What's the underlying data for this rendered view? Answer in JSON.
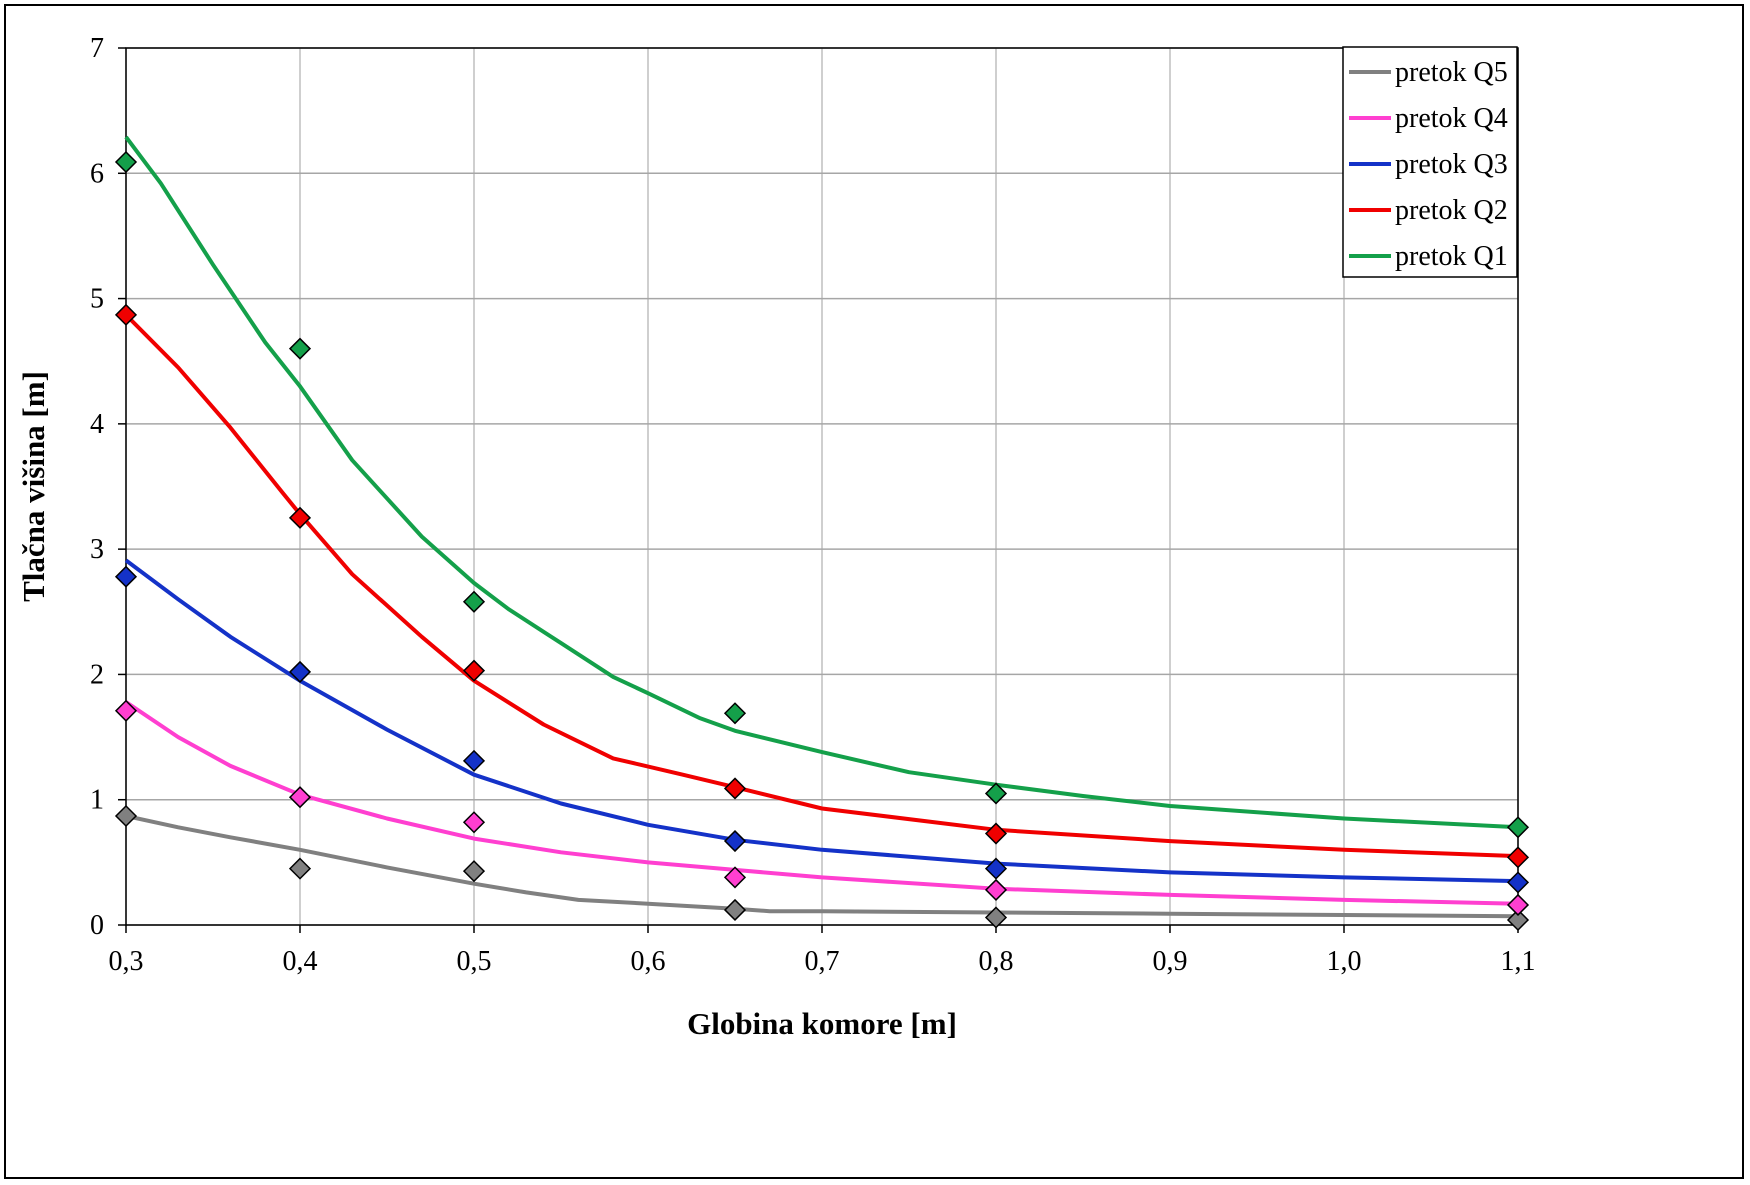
{
  "chart_data": {
    "type": "line",
    "title": "",
    "xlabel": "Globina komore [m]",
    "ylabel": "Tlačna višina [m]",
    "xlim": [
      0.3,
      1.1
    ],
    "ylim": [
      0,
      7
    ],
    "x_ticks": [
      "0,3",
      "0,4",
      "0,5",
      "0,6",
      "0,7",
      "0,8",
      "0,9",
      "1,0",
      "1,1"
    ],
    "y_ticks": [
      "0",
      "1",
      "2",
      "3",
      "4",
      "5",
      "6",
      "7"
    ],
    "grid": true,
    "legend_position": "top-right",
    "series": [
      {
        "name": "pretok Q5",
        "color": "#808080",
        "points_x": [
          0.3,
          0.4,
          0.5,
          0.65,
          0.8,
          1.1
        ],
        "points_y": [
          0.87,
          0.45,
          0.43,
          0.12,
          0.06,
          0.04
        ],
        "curve_x": [
          0.3,
          0.33,
          0.36,
          0.4,
          0.45,
          0.5,
          0.53,
          0.56,
          0.6,
          0.65,
          0.67,
          0.7,
          0.8,
          0.9,
          1.0,
          1.1
        ],
        "curve_y": [
          0.87,
          0.78,
          0.7,
          0.6,
          0.46,
          0.33,
          0.26,
          0.2,
          0.17,
          0.13,
          0.11,
          0.11,
          0.1,
          0.09,
          0.08,
          0.07
        ]
      },
      {
        "name": "pretok Q4",
        "color": "#FF3FD0",
        "points_x": [
          0.3,
          0.4,
          0.5,
          0.65,
          0.8,
          1.1
        ],
        "points_y": [
          1.71,
          1.02,
          0.82,
          0.38,
          0.28,
          0.16
        ],
        "curve_x": [
          0.3,
          0.33,
          0.36,
          0.4,
          0.45,
          0.5,
          0.55,
          0.6,
          0.65,
          0.7,
          0.8,
          0.9,
          1.0,
          1.1
        ],
        "curve_y": [
          1.78,
          1.5,
          1.27,
          1.04,
          0.85,
          0.69,
          0.58,
          0.5,
          0.44,
          0.38,
          0.29,
          0.24,
          0.2,
          0.17
        ]
      },
      {
        "name": "pretok Q3",
        "color": "#1432C8",
        "points_x": [
          0.3,
          0.4,
          0.5,
          0.65,
          0.8,
          1.1
        ],
        "points_y": [
          2.78,
          2.02,
          1.31,
          0.67,
          0.45,
          0.34
        ],
        "curve_x": [
          0.3,
          0.33,
          0.36,
          0.4,
          0.45,
          0.5,
          0.55,
          0.6,
          0.65,
          0.7,
          0.8,
          0.9,
          1.0,
          1.1
        ],
        "curve_y": [
          2.91,
          2.6,
          2.3,
          1.95,
          1.56,
          1.2,
          0.97,
          0.8,
          0.68,
          0.6,
          0.49,
          0.42,
          0.38,
          0.35
        ]
      },
      {
        "name": "pretok Q2",
        "color": "#F00000",
        "points_x": [
          0.3,
          0.4,
          0.5,
          0.65,
          0.8,
          1.1
        ],
        "points_y": [
          4.87,
          3.25,
          2.03,
          1.09,
          0.73,
          0.54
        ],
        "curve_x": [
          0.3,
          0.33,
          0.36,
          0.39,
          0.4,
          0.43,
          0.47,
          0.5,
          0.54,
          0.58,
          0.62,
          0.65,
          0.7,
          0.8,
          0.9,
          1.0,
          1.1
        ],
        "curve_y": [
          4.87,
          4.45,
          3.97,
          3.45,
          3.28,
          2.8,
          2.3,
          1.95,
          1.6,
          1.33,
          1.2,
          1.1,
          0.93,
          0.76,
          0.67,
          0.6,
          0.55
        ]
      },
      {
        "name": "pretok Q1",
        "color": "#14A04A",
        "points_x": [
          0.3,
          0.4,
          0.5,
          0.65,
          0.8,
          1.1
        ],
        "points_y": [
          6.09,
          4.6,
          2.58,
          1.69,
          1.05,
          0.78
        ],
        "curve_x": [
          0.3,
          0.32,
          0.35,
          0.38,
          0.4,
          0.43,
          0.47,
          0.5,
          0.52,
          0.55,
          0.58,
          0.6,
          0.63,
          0.65,
          0.7,
          0.75,
          0.8,
          0.85,
          0.9,
          1.0,
          1.1
        ],
        "curve_y": [
          6.29,
          5.92,
          5.27,
          4.65,
          4.3,
          3.71,
          3.1,
          2.73,
          2.52,
          2.25,
          1.98,
          1.85,
          1.65,
          1.55,
          1.38,
          1.22,
          1.12,
          1.03,
          0.95,
          0.85,
          0.78
        ]
      }
    ]
  }
}
